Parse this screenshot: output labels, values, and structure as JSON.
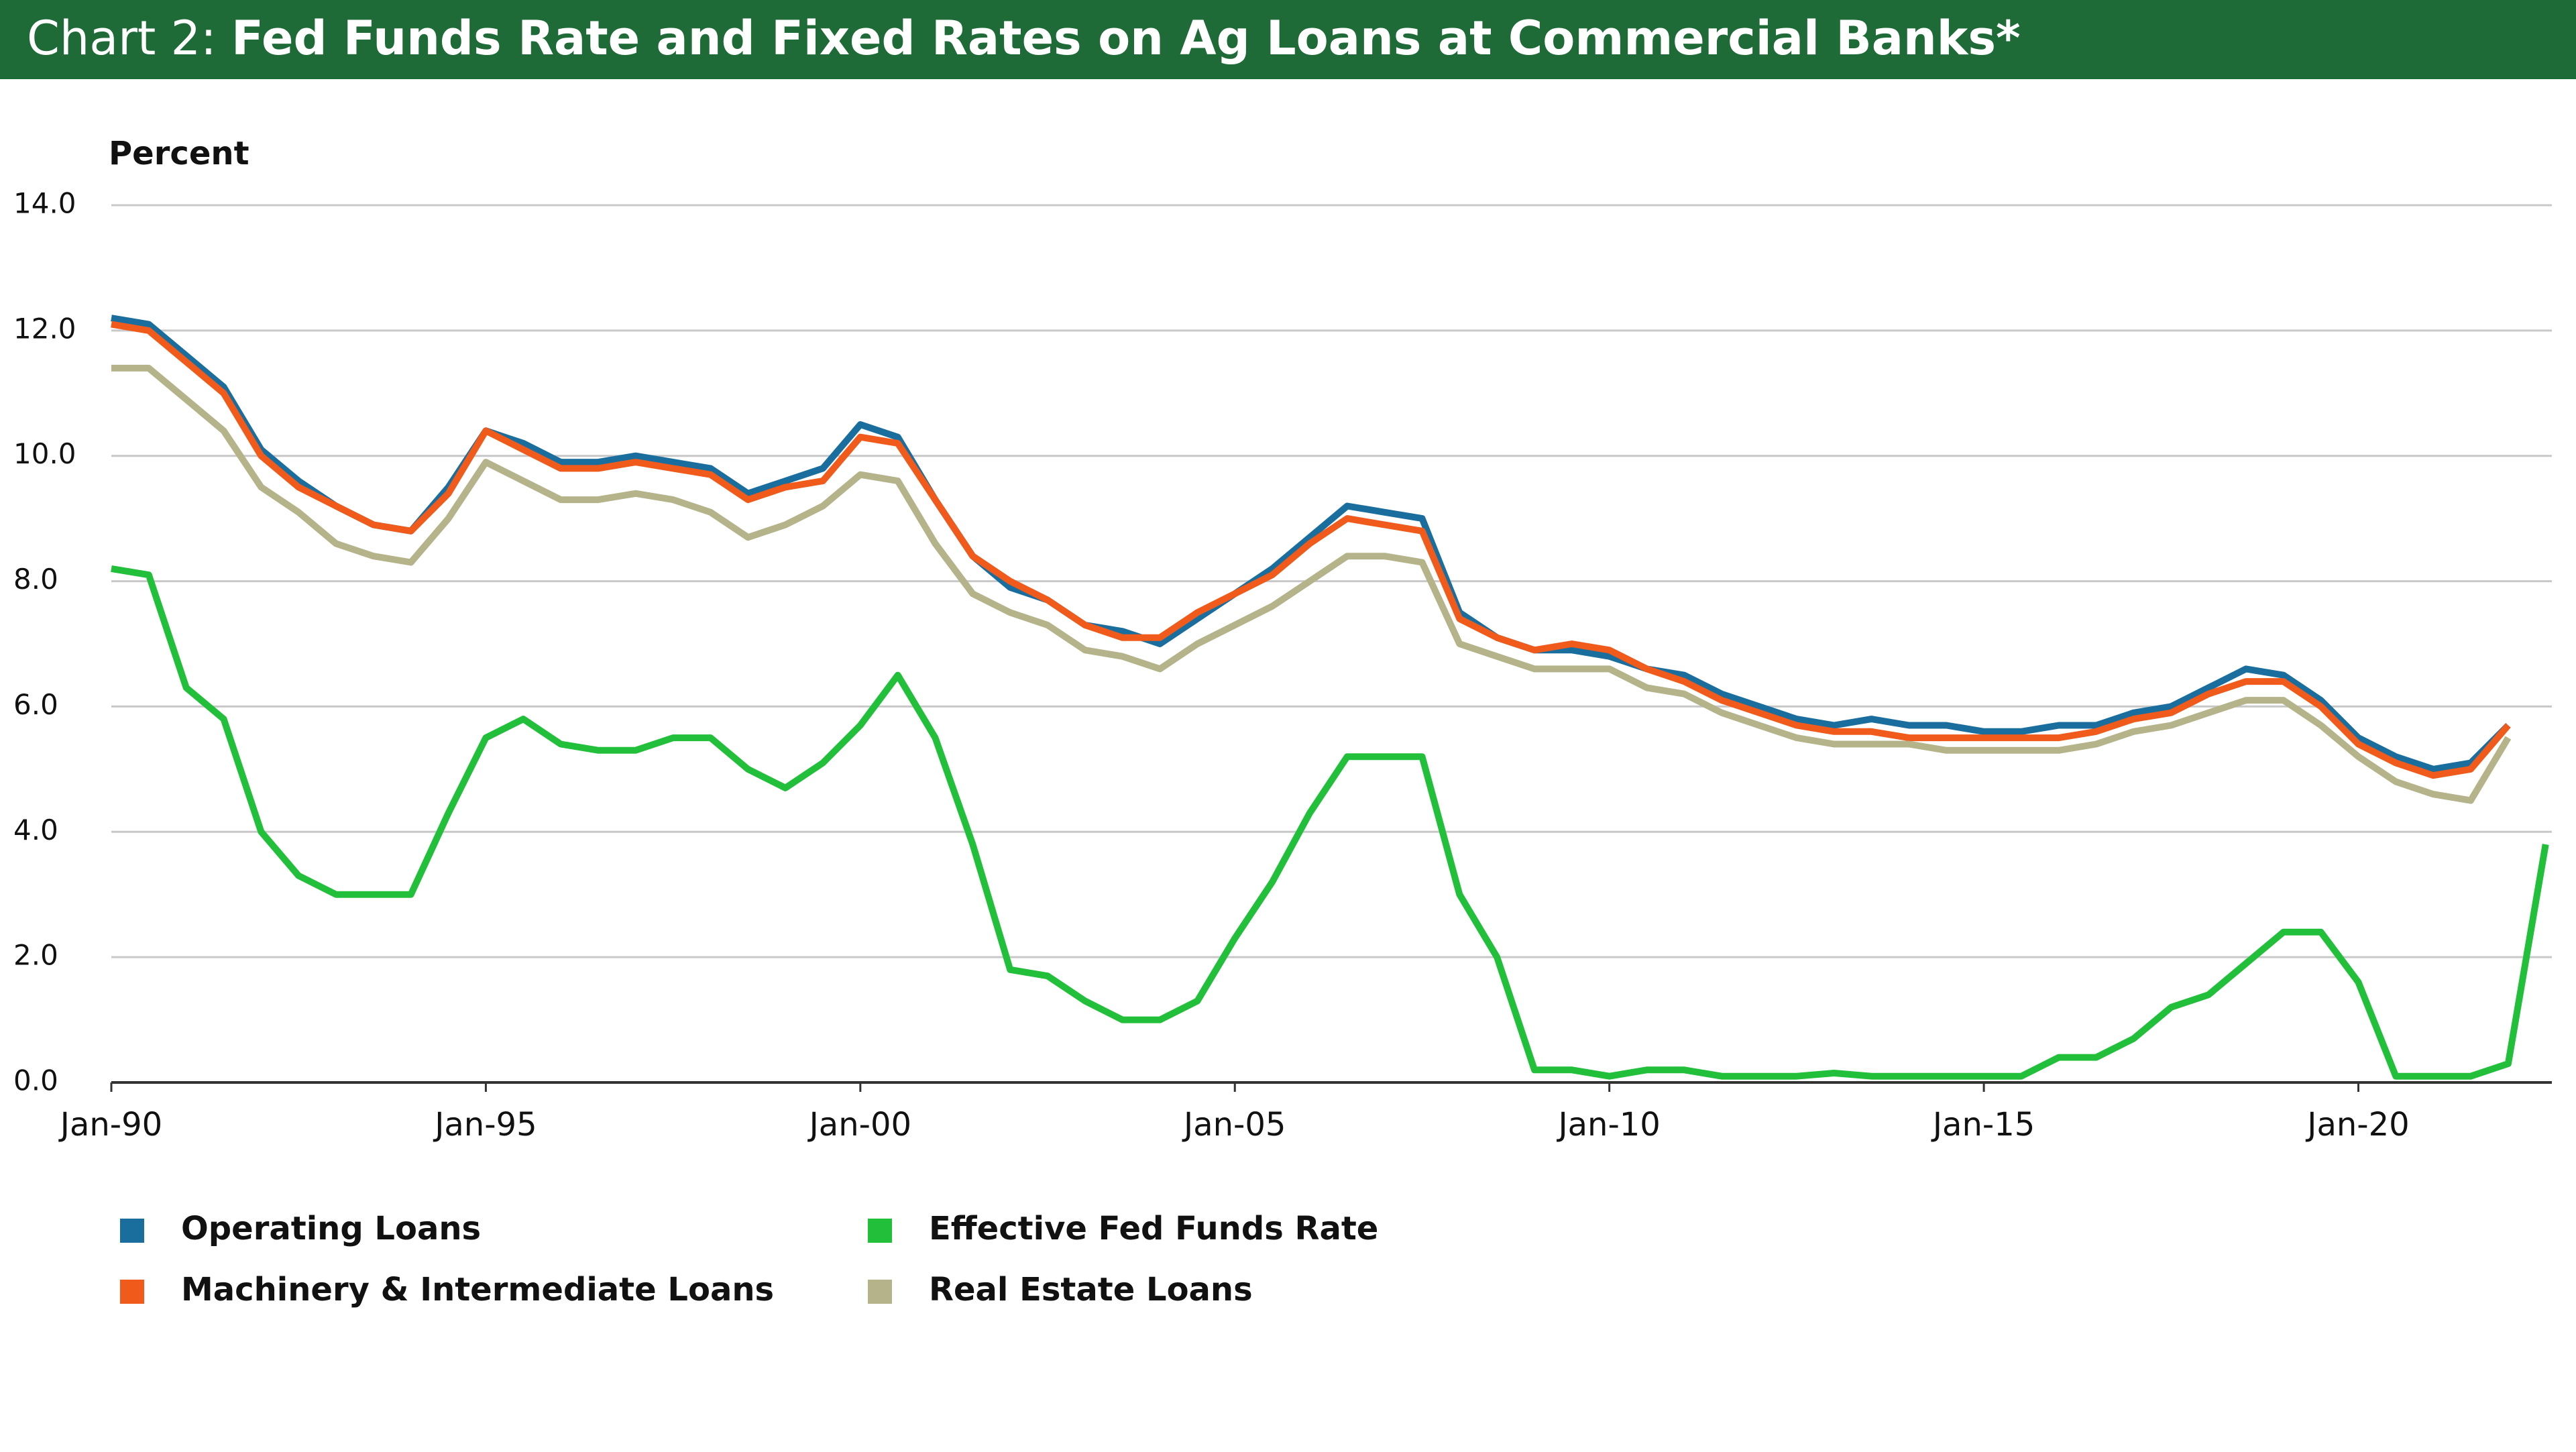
{
  "chart_data": {
    "type": "line",
    "title_prefix": "Chart 2:",
    "title": "Fed Funds Rate and Fixed Rates on Ag Loans at Commercial Banks*",
    "y_label": "Percent",
    "x": [
      "1990-01",
      "1990-07",
      "1991-01",
      "1991-07",
      "1992-01",
      "1992-07",
      "1993-01",
      "1993-07",
      "1994-01",
      "1994-07",
      "1995-01",
      "1995-07",
      "1996-01",
      "1996-07",
      "1997-01",
      "1997-07",
      "1998-01",
      "1998-07",
      "1999-01",
      "1999-07",
      "2000-01",
      "2000-07",
      "2001-01",
      "2001-07",
      "2002-01",
      "2002-07",
      "2003-01",
      "2003-07",
      "2004-01",
      "2004-07",
      "2005-01",
      "2005-07",
      "2006-01",
      "2006-07",
      "2007-01",
      "2007-07",
      "2008-01",
      "2008-07",
      "2009-01",
      "2009-07",
      "2010-01",
      "2010-07",
      "2011-01",
      "2011-07",
      "2012-01",
      "2012-07",
      "2013-01",
      "2013-07",
      "2014-01",
      "2014-07",
      "2015-01",
      "2015-07",
      "2016-01",
      "2016-07",
      "2017-01",
      "2017-07",
      "2018-01",
      "2018-07",
      "2019-01",
      "2019-07",
      "2020-01",
      "2020-07",
      "2021-01",
      "2021-07",
      "2022-01",
      "2022-07"
    ],
    "series": [
      {
        "name": "Operating Loans",
        "color": "#1a6e9e",
        "values": [
          12.2,
          12.1,
          11.6,
          11.1,
          10.1,
          9.6,
          9.2,
          8.9,
          8.8,
          9.5,
          10.4,
          10.2,
          9.9,
          9.9,
          10.0,
          9.9,
          9.8,
          9.4,
          9.6,
          9.8,
          10.5,
          10.3,
          9.3,
          8.4,
          7.9,
          7.7,
          7.3,
          7.2,
          7.0,
          7.4,
          7.8,
          8.2,
          8.7,
          9.2,
          9.1,
          9.0,
          7.5,
          7.1,
          6.9,
          6.9,
          6.8,
          6.6,
          6.5,
          6.2,
          6.0,
          5.8,
          5.7,
          5.8,
          5.7,
          5.7,
          5.6,
          5.6,
          5.7,
          5.7,
          5.9,
          6.0,
          6.3,
          6.6,
          6.5,
          6.1,
          5.5,
          5.2,
          5.0,
          5.1,
          5.7,
          null
        ]
      },
      {
        "name": "Machinery & Intermediate Loans",
        "color": "#f05a1a",
        "values": [
          12.1,
          12.0,
          11.5,
          11.0,
          10.0,
          9.5,
          9.2,
          8.9,
          8.8,
          9.4,
          10.4,
          10.1,
          9.8,
          9.8,
          9.9,
          9.8,
          9.7,
          9.3,
          9.5,
          9.6,
          10.3,
          10.2,
          9.3,
          8.4,
          8.0,
          7.7,
          7.3,
          7.1,
          7.1,
          7.5,
          7.8,
          8.1,
          8.6,
          9.0,
          8.9,
          8.8,
          7.4,
          7.1,
          6.9,
          7.0,
          6.9,
          6.6,
          6.4,
          6.1,
          5.9,
          5.7,
          5.6,
          5.6,
          5.5,
          5.5,
          5.5,
          5.5,
          5.5,
          5.6,
          5.8,
          5.9,
          6.2,
          6.4,
          6.4,
          6.0,
          5.4,
          5.1,
          4.9,
          5.0,
          5.7,
          null
        ]
      },
      {
        "name": "Effective Fed Funds Rate",
        "color": "#22c03a",
        "values": [
          8.2,
          8.1,
          6.3,
          5.8,
          4.0,
          3.3,
          3.0,
          3.0,
          3.0,
          4.3,
          5.5,
          5.8,
          5.4,
          5.3,
          5.3,
          5.5,
          5.5,
          5.0,
          4.7,
          5.1,
          5.7,
          6.5,
          5.5,
          3.8,
          1.8,
          1.7,
          1.3,
          1.0,
          1.0,
          1.3,
          2.3,
          3.2,
          4.3,
          5.2,
          5.2,
          5.2,
          3.0,
          2.0,
          0.2,
          0.2,
          0.1,
          0.2,
          0.2,
          0.1,
          0.1,
          0.1,
          0.15,
          0.1,
          0.1,
          0.1,
          0.1,
          0.1,
          0.4,
          0.4,
          0.7,
          1.2,
          1.4,
          1.9,
          2.4,
          2.4,
          1.6,
          0.1,
          0.1,
          0.1,
          0.3,
          3.8
        ]
      },
      {
        "name": "Real Estate Loans",
        "color": "#b5b38a",
        "values": [
          11.4,
          11.4,
          10.9,
          10.4,
          9.5,
          9.1,
          8.6,
          8.4,
          8.3,
          9.0,
          9.9,
          9.6,
          9.3,
          9.3,
          9.4,
          9.3,
          9.1,
          8.7,
          8.9,
          9.2,
          9.7,
          9.6,
          8.6,
          7.8,
          7.5,
          7.3,
          6.9,
          6.8,
          6.6,
          7.0,
          7.3,
          7.6,
          8.0,
          8.4,
          8.4,
          8.3,
          7.0,
          6.8,
          6.6,
          6.6,
          6.6,
          6.3,
          6.2,
          5.9,
          5.7,
          5.5,
          5.4,
          5.4,
          5.4,
          5.3,
          5.3,
          5.3,
          5.3,
          5.4,
          5.6,
          5.7,
          5.9,
          6.1,
          6.1,
          5.7,
          5.2,
          4.8,
          4.6,
          4.5,
          5.5,
          null
        ]
      }
    ],
    "xlim": [
      "1990-01",
      "2022-08"
    ],
    "xticks": [
      {
        "value": "1990-01",
        "label": "Jan-90"
      },
      {
        "value": "1995-01",
        "label": "Jan-95"
      },
      {
        "value": "2000-01",
        "label": "Jan-00"
      },
      {
        "value": "2005-01",
        "label": "Jan-05"
      },
      {
        "value": "2010-01",
        "label": "Jan-10"
      },
      {
        "value": "2015-01",
        "label": "Jan-15"
      },
      {
        "value": "2020-01",
        "label": "Jan-20"
      }
    ],
    "ylim": [
      0,
      14
    ],
    "yticks": [
      {
        "value": 0,
        "label": "0.0"
      },
      {
        "value": 2,
        "label": "2.0"
      },
      {
        "value": 4,
        "label": "4.0"
      },
      {
        "value": 6,
        "label": "6.0"
      },
      {
        "value": 8,
        "label": "8.0"
      },
      {
        "value": 10,
        "label": "10.0"
      },
      {
        "value": 12,
        "label": "12.0"
      },
      {
        "value": 14,
        "label": "14.0"
      }
    ],
    "grid": true
  }
}
